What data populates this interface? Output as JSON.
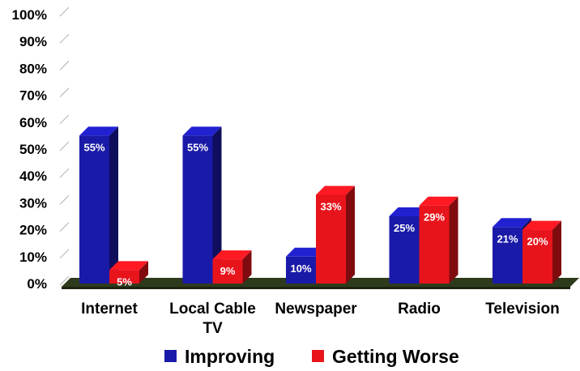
{
  "chart_data": {
    "type": "bar",
    "title": "",
    "xlabel": "",
    "ylabel": "",
    "ylim": [
      0,
      100
    ],
    "yticks": [
      "0%",
      "10%",
      "20%",
      "30%",
      "40%",
      "50%",
      "60%",
      "70%",
      "80%",
      "90%",
      "100%"
    ],
    "categories": [
      [
        "Internet"
      ],
      [
        "Local Cable",
        "TV"
      ],
      [
        "Newspaper"
      ],
      [
        "Radio"
      ],
      [
        "Television"
      ]
    ],
    "series": [
      {
        "name": "Improving",
        "color": "#1a1aa8",
        "values": [
          55,
          55,
          10,
          25,
          21
        ],
        "labels": [
          "55%",
          "55%",
          "10%",
          "25%",
          "21%"
        ]
      },
      {
        "name": "Getting Worse",
        "color": "#e8141c",
        "values": [
          5,
          9,
          33,
          29,
          20
        ],
        "labels": [
          "5%",
          "9%",
          "33%",
          "29%",
          "20%"
        ]
      }
    ],
    "legend_position": "bottom",
    "grid": false,
    "style": "3d"
  }
}
